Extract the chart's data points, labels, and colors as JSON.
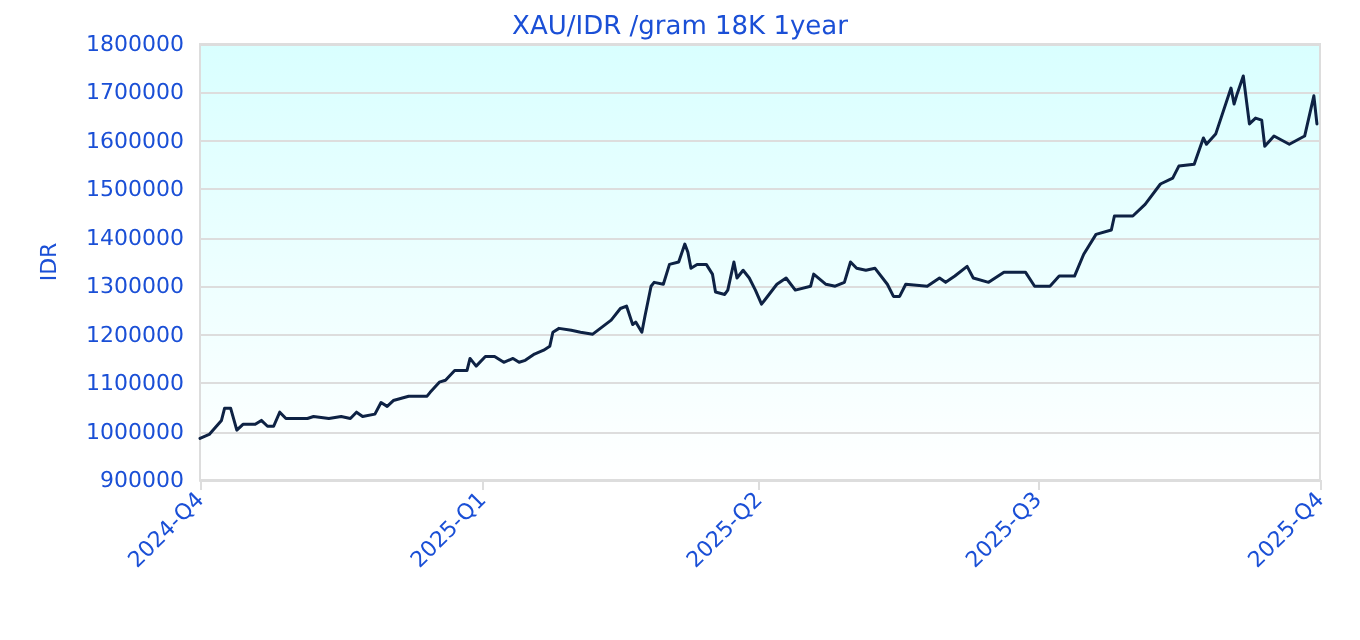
{
  "chart_data": {
    "type": "line",
    "title": "XAU/IDR /gram 18K 1year",
    "ylabel": "IDR",
    "x": [
      "2024-10-01",
      "2024-10-04",
      "2024-10-08",
      "2024-10-09",
      "2024-10-11",
      "2024-10-13",
      "2024-10-15",
      "2024-10-19",
      "2024-10-21",
      "2024-10-23",
      "2024-10-25",
      "2024-10-27",
      "2024-10-29",
      "2024-11-05",
      "2024-11-07",
      "2024-11-12",
      "2024-11-16",
      "2024-11-19",
      "2024-11-21",
      "2024-11-23",
      "2024-11-27",
      "2024-11-29",
      "2024-12-01",
      "2024-12-03",
      "2024-12-08",
      "2024-12-14",
      "2024-12-15",
      "2024-12-18",
      "2024-12-20",
      "2024-12-23",
      "2024-12-27",
      "2024-12-28",
      "2024-12-30",
      "2025-01-02",
      "2025-01-05",
      "2025-01-08",
      "2025-01-11",
      "2025-01-13",
      "2025-01-15",
      "2025-01-18",
      "2025-01-21",
      "2025-01-23",
      "2025-01-24",
      "2025-01-26",
      "2025-01-30",
      "2025-02-02",
      "2025-02-06",
      "2025-02-12",
      "2025-02-15",
      "2025-02-17",
      "2025-02-19",
      "2025-02-20",
      "2025-02-22",
      "2025-02-23",
      "2025-02-25",
      "2025-02-26",
      "2025-03-01",
      "2025-03-03",
      "2025-03-06",
      "2025-03-08",
      "2025-03-09",
      "2025-03-10",
      "2025-03-12",
      "2025-03-15",
      "2025-03-17",
      "2025-03-18",
      "2025-03-21",
      "2025-03-22",
      "2025-03-24",
      "2025-03-25",
      "2025-03-27",
      "2025-03-29",
      "2025-03-31",
      "2025-04-02",
      "2025-04-03",
      "2025-04-07",
      "2025-04-10",
      "2025-04-13",
      "2025-04-18",
      "2025-04-19",
      "2025-04-23",
      "2025-04-26",
      "2025-04-29",
      "2025-05-01",
      "2025-05-03",
      "2025-05-06",
      "2025-05-09",
      "2025-05-13",
      "2025-05-15",
      "2025-05-17",
      "2025-05-19",
      "2025-05-26",
      "2025-05-30",
      "2025-06-01",
      "2025-06-04",
      "2025-06-08",
      "2025-06-10",
      "2025-06-15",
      "2025-06-20",
      "2025-06-27",
      "2025-06-30",
      "2025-07-05",
      "2025-07-08",
      "2025-07-13",
      "2025-07-16",
      "2025-07-20",
      "2025-07-25",
      "2025-07-26",
      "2025-08-01",
      "2025-08-05",
      "2025-08-10",
      "2025-08-14",
      "2025-08-16",
      "2025-08-21",
      "2025-08-24",
      "2025-08-25",
      "2025-08-28",
      "2025-09-02",
      "2025-09-03",
      "2025-09-04",
      "2025-09-06",
      "2025-09-08",
      "2025-09-10",
      "2025-09-12",
      "2025-09-13",
      "2025-09-16",
      "2025-09-21",
      "2025-09-26",
      "2025-09-29",
      "2025-09-30"
    ],
    "series": [
      {
        "color": "#0e2244",
        "values": [
          986000,
          994000,
          1023000,
          1048000,
          1048000,
          1003000,
          1015000,
          1015000,
          1023000,
          1011000,
          1011000,
          1040000,
          1027000,
          1027000,
          1031000,
          1027000,
          1031000,
          1027000,
          1040000,
          1031000,
          1036000,
          1060000,
          1052000,
          1064000,
          1073000,
          1073000,
          1081000,
          1102000,
          1106000,
          1126000,
          1126000,
          1151000,
          1135000,
          1155000,
          1155000,
          1143000,
          1151000,
          1143000,
          1147000,
          1160000,
          1168000,
          1176000,
          1205000,
          1213000,
          1209000,
          1205000,
          1201000,
          1230000,
          1254000,
          1259000,
          1221000,
          1226000,
          1205000,
          1238000,
          1300000,
          1308000,
          1304000,
          1345000,
          1350000,
          1387000,
          1370000,
          1337000,
          1345000,
          1345000,
          1325000,
          1288000,
          1283000,
          1292000,
          1350000,
          1317000,
          1333000,
          1317000,
          1292000,
          1263000,
          1271000,
          1304000,
          1317000,
          1292000,
          1300000,
          1325000,
          1304000,
          1300000,
          1308000,
          1350000,
          1337000,
          1333000,
          1337000,
          1304000,
          1279000,
          1279000,
          1304000,
          1300000,
          1317000,
          1308000,
          1321000,
          1341000,
          1317000,
          1308000,
          1329000,
          1329000,
          1300000,
          1300000,
          1321000,
          1321000,
          1366000,
          1407000,
          1416000,
          1445000,
          1445000,
          1469000,
          1511000,
          1523000,
          1548000,
          1552000,
          1606000,
          1593000,
          1614000,
          1709000,
          1676000,
          1697000,
          1734000,
          1635000,
          1647000,
          1643000,
          1589000,
          1610000,
          1593000,
          1610000,
          1693000,
          1635000
        ]
      }
    ],
    "xlim": [
      "2024-10-01",
      "2025-10-01"
    ],
    "xticks": [
      {
        "value": "2024-10-01",
        "label": "2024-Q4"
      },
      {
        "value": "2025-01-01",
        "label": "2025-Q1"
      },
      {
        "value": "2025-04-01",
        "label": "2025-Q2"
      },
      {
        "value": "2025-07-01",
        "label": "2025-Q3"
      },
      {
        "value": "2025-10-01",
        "label": "2025-Q4"
      }
    ],
    "ylim": [
      900000,
      1800000
    ],
    "yticks": [
      900000,
      1000000,
      1100000,
      1200000,
      1300000,
      1400000,
      1500000,
      1600000,
      1700000,
      1800000
    ],
    "grid": "y",
    "marker": "none",
    "line_style": "solid"
  }
}
